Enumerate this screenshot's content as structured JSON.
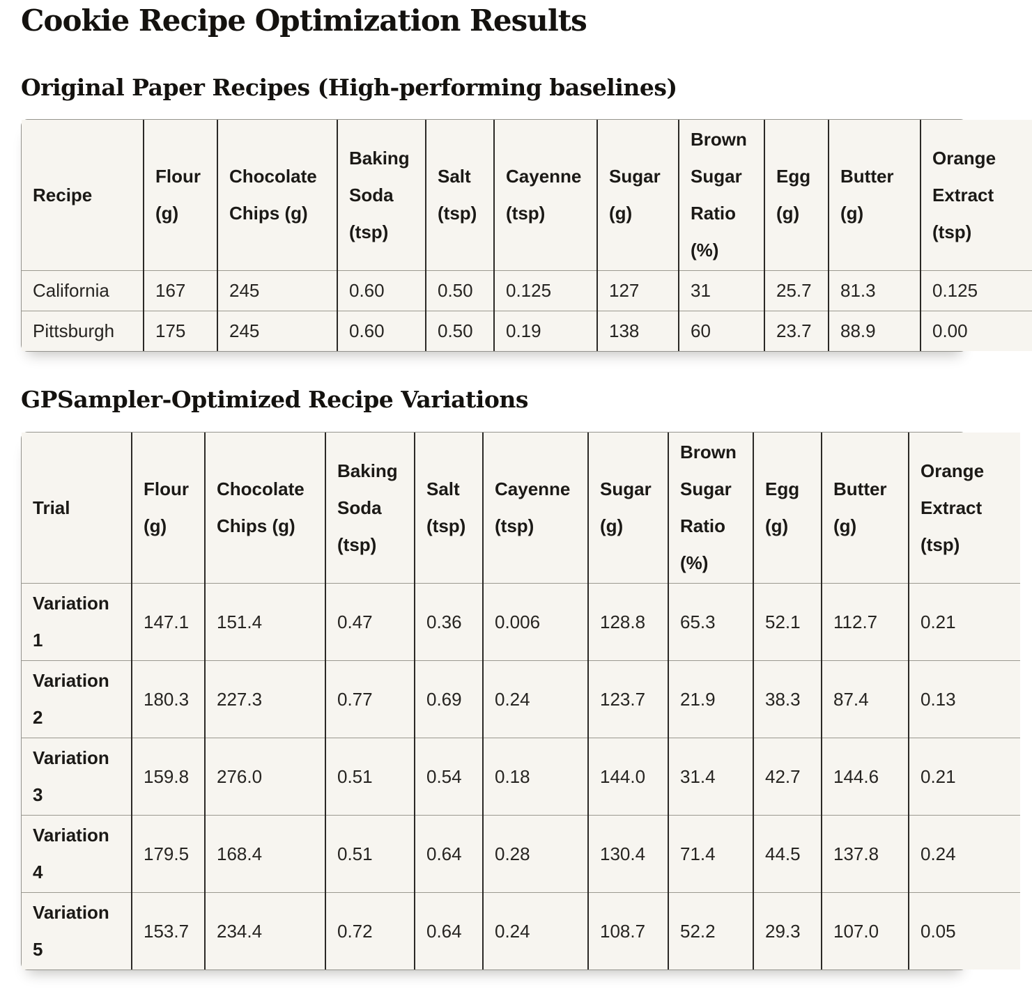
{
  "page": {
    "title": "Cookie Recipe Optimization Results"
  },
  "colors": {
    "page_background": "#ffffff",
    "cell_background": "#f7f5f0",
    "vertical_border": "#2b2926",
    "horizontal_border": "#9a988f",
    "outer_border": "#94938d",
    "text": "#201e1b"
  },
  "sections": [
    {
      "heading": "Original Paper Recipes (High-performing baselines)",
      "table": {
        "columns": [
          "Recipe",
          "Flour (g)",
          "Chocolate Chips (g)",
          "Baking Soda (tsp)",
          "Salt (tsp)",
          "Cayenne (tsp)",
          "Sugar (g)",
          "Brown Sugar Ratio (%)",
          "Egg (g)",
          "Butter (g)",
          "Orange Extract (tsp)"
        ],
        "rows": [
          [
            "California",
            "167",
            "245",
            "0.60",
            "0.50",
            "0.125",
            "127",
            "31",
            "25.7",
            "81.3",
            "0.125"
          ],
          [
            "Pittsburgh",
            "175",
            "245",
            "0.60",
            "0.50",
            "0.19",
            "138",
            "60",
            "23.7",
            "88.9",
            "0.00"
          ]
        ]
      }
    },
    {
      "heading": "GPSampler-Optimized Recipe Variations",
      "table": {
        "columns": [
          "Trial",
          "Flour (g)",
          "Chocolate Chips (g)",
          "Baking Soda (tsp)",
          "Salt (tsp)",
          "Cayenne (tsp)",
          "Sugar (g)",
          "Brown Sugar Ratio (%)",
          "Egg (g)",
          "Butter (g)",
          "Orange Extract (tsp)"
        ],
        "rows": [
          [
            "Variation 1",
            "147.1",
            "151.4",
            "0.47",
            "0.36",
            "0.006",
            "128.8",
            "65.3",
            "52.1",
            "112.7",
            "0.21"
          ],
          [
            "Variation 2",
            "180.3",
            "227.3",
            "0.77",
            "0.69",
            "0.24",
            "123.7",
            "21.9",
            "38.3",
            "87.4",
            "0.13"
          ],
          [
            "Variation 3",
            "159.8",
            "276.0",
            "0.51",
            "0.54",
            "0.18",
            "144.0",
            "31.4",
            "42.7",
            "144.6",
            "0.21"
          ],
          [
            "Variation 4",
            "179.5",
            "168.4",
            "0.51",
            "0.64",
            "0.28",
            "130.4",
            "71.4",
            "44.5",
            "137.8",
            "0.24"
          ],
          [
            "Variation 5",
            "153.7",
            "234.4",
            "0.72",
            "0.64",
            "0.24",
            "108.7",
            "52.2",
            "29.3",
            "107.0",
            "0.05"
          ]
        ]
      }
    }
  ]
}
